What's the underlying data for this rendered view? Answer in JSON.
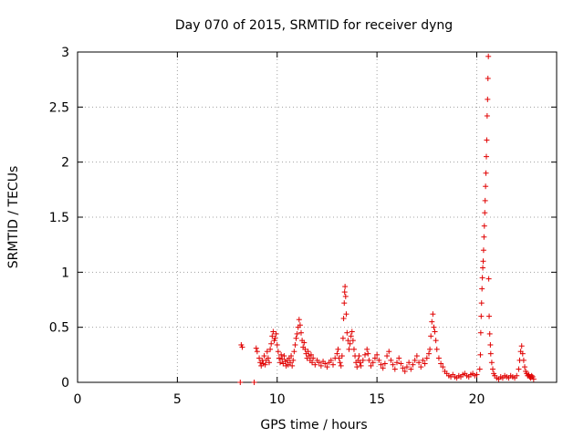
{
  "chart_data": {
    "type": "scatter",
    "title": "Day 070 of 2015, SRMTID for receiver dyng",
    "xlabel": "GPS time / hours",
    "ylabel": "SRMTID / TECUs",
    "xlim": [
      0,
      24
    ],
    "ylim": [
      0,
      3
    ],
    "xticks": [
      0,
      5,
      10,
      15,
      20
    ],
    "yticks": [
      0,
      0.5,
      1,
      1.5,
      2,
      2.5,
      3
    ],
    "xtick_labels": [
      "0",
      "5",
      "10",
      "15",
      "20"
    ],
    "ytick_labels": [
      "0",
      "0.5",
      "1",
      "1.5",
      "2",
      "2.5",
      "3"
    ],
    "grid": true,
    "marker": "+",
    "color": "#e00000",
    "series": [
      {
        "name": "SRMTID",
        "points": [
          [
            8.15,
            0.0
          ],
          [
            8.2,
            0.34
          ],
          [
            8.25,
            0.32
          ],
          [
            8.85,
            0.0
          ],
          [
            8.95,
            0.31
          ],
          [
            9.0,
            0.28
          ],
          [
            9.1,
            0.22
          ],
          [
            9.15,
            0.18
          ],
          [
            9.2,
            0.15
          ],
          [
            9.25,
            0.2
          ],
          [
            9.3,
            0.17
          ],
          [
            9.35,
            0.24
          ],
          [
            9.4,
            0.16
          ],
          [
            9.45,
            0.2
          ],
          [
            9.5,
            0.28
          ],
          [
            9.55,
            0.22
          ],
          [
            9.6,
            0.18
          ],
          [
            9.65,
            0.3
          ],
          [
            9.7,
            0.35
          ],
          [
            9.75,
            0.42
          ],
          [
            9.8,
            0.46
          ],
          [
            9.85,
            0.38
          ],
          [
            9.9,
            0.4
          ],
          [
            9.95,
            0.44
          ],
          [
            10.0,
            0.34
          ],
          [
            10.05,
            0.28
          ],
          [
            10.1,
            0.22
          ],
          [
            10.15,
            0.18
          ],
          [
            10.2,
            0.25
          ],
          [
            10.25,
            0.21
          ],
          [
            10.3,
            0.17
          ],
          [
            10.35,
            0.24
          ],
          [
            10.4,
            0.19
          ],
          [
            10.45,
            0.15
          ],
          [
            10.5,
            0.2
          ],
          [
            10.55,
            0.16
          ],
          [
            10.6,
            0.22
          ],
          [
            10.65,
            0.18
          ],
          [
            10.7,
            0.24
          ],
          [
            10.75,
            0.15
          ],
          [
            10.8,
            0.2
          ],
          [
            10.85,
            0.28
          ],
          [
            10.9,
            0.34
          ],
          [
            10.95,
            0.4
          ],
          [
            11.0,
            0.44
          ],
          [
            11.05,
            0.5
          ],
          [
            11.1,
            0.57
          ],
          [
            11.15,
            0.52
          ],
          [
            11.2,
            0.45
          ],
          [
            11.25,
            0.38
          ],
          [
            11.3,
            0.32
          ],
          [
            11.35,
            0.36
          ],
          [
            11.4,
            0.3
          ],
          [
            11.45,
            0.26
          ],
          [
            11.5,
            0.22
          ],
          [
            11.55,
            0.28
          ],
          [
            11.6,
            0.24
          ],
          [
            11.65,
            0.2
          ],
          [
            11.7,
            0.25
          ],
          [
            11.75,
            0.18
          ],
          [
            11.8,
            0.22
          ],
          [
            11.9,
            0.16
          ],
          [
            12.0,
            0.2
          ],
          [
            12.1,
            0.18
          ],
          [
            12.2,
            0.15
          ],
          [
            12.3,
            0.19
          ],
          [
            12.4,
            0.17
          ],
          [
            12.5,
            0.14
          ],
          [
            12.6,
            0.18
          ],
          [
            12.7,
            0.2
          ],
          [
            12.8,
            0.16
          ],
          [
            12.9,
            0.22
          ],
          [
            13.0,
            0.26
          ],
          [
            13.05,
            0.3
          ],
          [
            13.1,
            0.22
          ],
          [
            13.15,
            0.18
          ],
          [
            13.2,
            0.15
          ],
          [
            13.25,
            0.24
          ],
          [
            13.3,
            0.4
          ],
          [
            13.33,
            0.58
          ],
          [
            13.36,
            0.72
          ],
          [
            13.38,
            0.82
          ],
          [
            13.4,
            0.87
          ],
          [
            13.43,
            0.78
          ],
          [
            13.46,
            0.62
          ],
          [
            13.5,
            0.45
          ],
          [
            13.55,
            0.38
          ],
          [
            13.6,
            0.3
          ],
          [
            13.65,
            0.35
          ],
          [
            13.7,
            0.42
          ],
          [
            13.75,
            0.46
          ],
          [
            13.8,
            0.38
          ],
          [
            13.85,
            0.3
          ],
          [
            13.9,
            0.24
          ],
          [
            13.95,
            0.18
          ],
          [
            14.0,
            0.14
          ],
          [
            14.05,
            0.2
          ],
          [
            14.1,
            0.24
          ],
          [
            14.15,
            0.18
          ],
          [
            14.2,
            0.15
          ],
          [
            14.3,
            0.2
          ],
          [
            14.4,
            0.25
          ],
          [
            14.5,
            0.3
          ],
          [
            14.55,
            0.26
          ],
          [
            14.6,
            0.2
          ],
          [
            14.7,
            0.15
          ],
          [
            14.8,
            0.18
          ],
          [
            14.9,
            0.22
          ],
          [
            15.0,
            0.25
          ],
          [
            15.1,
            0.2
          ],
          [
            15.2,
            0.16
          ],
          [
            15.3,
            0.13
          ],
          [
            15.4,
            0.17
          ],
          [
            15.5,
            0.24
          ],
          [
            15.6,
            0.28
          ],
          [
            15.7,
            0.2
          ],
          [
            15.8,
            0.16
          ],
          [
            15.9,
            0.12
          ],
          [
            16.0,
            0.18
          ],
          [
            16.1,
            0.22
          ],
          [
            16.2,
            0.17
          ],
          [
            16.3,
            0.13
          ],
          [
            16.4,
            0.1
          ],
          [
            16.5,
            0.14
          ],
          [
            16.6,
            0.18
          ],
          [
            16.7,
            0.12
          ],
          [
            16.8,
            0.16
          ],
          [
            16.9,
            0.2
          ],
          [
            17.0,
            0.24
          ],
          [
            17.1,
            0.18
          ],
          [
            17.2,
            0.14
          ],
          [
            17.3,
            0.2
          ],
          [
            17.4,
            0.17
          ],
          [
            17.5,
            0.22
          ],
          [
            17.6,
            0.26
          ],
          [
            17.65,
            0.3
          ],
          [
            17.7,
            0.42
          ],
          [
            17.75,
            0.55
          ],
          [
            17.8,
            0.62
          ],
          [
            17.85,
            0.5
          ],
          [
            17.9,
            0.46
          ],
          [
            17.95,
            0.38
          ],
          [
            18.0,
            0.3
          ],
          [
            18.1,
            0.22
          ],
          [
            18.2,
            0.17
          ],
          [
            18.3,
            0.14
          ],
          [
            18.4,
            0.1
          ],
          [
            18.5,
            0.08
          ],
          [
            18.6,
            0.06
          ],
          [
            18.7,
            0.05
          ],
          [
            18.8,
            0.07
          ],
          [
            18.9,
            0.05
          ],
          [
            19.0,
            0.04
          ],
          [
            19.1,
            0.06
          ],
          [
            19.2,
            0.05
          ],
          [
            19.3,
            0.07
          ],
          [
            19.4,
            0.08
          ],
          [
            19.5,
            0.06
          ],
          [
            19.6,
            0.05
          ],
          [
            19.7,
            0.07
          ],
          [
            19.8,
            0.08
          ],
          [
            19.9,
            0.06
          ],
          [
            20.0,
            0.07
          ],
          [
            20.15,
            0.12
          ],
          [
            20.18,
            0.25
          ],
          [
            20.2,
            0.45
          ],
          [
            20.22,
            0.6
          ],
          [
            20.24,
            0.72
          ],
          [
            20.26,
            0.85
          ],
          [
            20.28,
            0.95
          ],
          [
            20.3,
            1.04
          ],
          [
            20.32,
            1.1
          ],
          [
            20.34,
            1.2
          ],
          [
            20.36,
            1.32
          ],
          [
            20.38,
            1.42
          ],
          [
            20.4,
            1.54
          ],
          [
            20.42,
            1.65
          ],
          [
            20.44,
            1.78
          ],
          [
            20.46,
            1.9
          ],
          [
            20.48,
            2.05
          ],
          [
            20.5,
            2.2
          ],
          [
            20.52,
            2.42
          ],
          [
            20.54,
            2.57
          ],
          [
            20.56,
            2.76
          ],
          [
            20.58,
            2.96
          ],
          [
            20.6,
            0.94
          ],
          [
            20.62,
            0.6
          ],
          [
            20.65,
            0.44
          ],
          [
            20.68,
            0.34
          ],
          [
            20.7,
            0.26
          ],
          [
            20.75,
            0.18
          ],
          [
            20.8,
            0.12
          ],
          [
            20.85,
            0.08
          ],
          [
            20.9,
            0.06
          ],
          [
            21.0,
            0.04
          ],
          [
            21.1,
            0.03
          ],
          [
            21.2,
            0.05
          ],
          [
            21.3,
            0.04
          ],
          [
            21.4,
            0.06
          ],
          [
            21.5,
            0.05
          ],
          [
            21.6,
            0.04
          ],
          [
            21.7,
            0.06
          ],
          [
            21.8,
            0.05
          ],
          [
            21.9,
            0.04
          ],
          [
            22.0,
            0.06
          ],
          [
            22.1,
            0.12
          ],
          [
            22.15,
            0.2
          ],
          [
            22.2,
            0.28
          ],
          [
            22.25,
            0.33
          ],
          [
            22.3,
            0.26
          ],
          [
            22.35,
            0.2
          ],
          [
            22.4,
            0.14
          ],
          [
            22.45,
            0.1
          ],
          [
            22.5,
            0.08
          ],
          [
            22.55,
            0.06
          ],
          [
            22.6,
            0.07
          ],
          [
            22.65,
            0.05
          ],
          [
            22.7,
            0.04
          ],
          [
            22.75,
            0.06
          ],
          [
            22.8,
            0.05
          ],
          [
            22.85,
            0.03
          ]
        ]
      }
    ]
  }
}
